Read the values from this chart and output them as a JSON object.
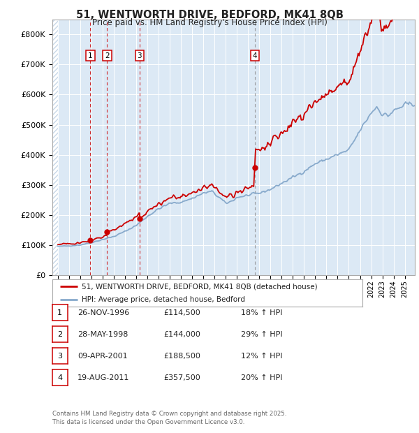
{
  "title_line1": "51, WENTWORTH DRIVE, BEDFORD, MK41 8QB",
  "title_line2": "Price paid vs. HM Land Registry's House Price Index (HPI)",
  "legend_label_red": "51, WENTWORTH DRIVE, BEDFORD, MK41 8QB (detached house)",
  "legend_label_blue": "HPI: Average price, detached house, Bedford",
  "footer": "Contains HM Land Registry data © Crown copyright and database right 2025.\nThis data is licensed under the Open Government Licence v3.0.",
  "transactions": [
    {
      "num": 1,
      "date": "26-NOV-1996",
      "price": 114500,
      "pct": "18%",
      "year": 1996.9,
      "vline_color": "#cc0000"
    },
    {
      "num": 2,
      "date": "28-MAY-1998",
      "price": 144000,
      "pct": "29%",
      "year": 1998.4,
      "vline_color": "#cc0000"
    },
    {
      "num": 3,
      "date": "09-APR-2001",
      "price": 188500,
      "pct": "12%",
      "year": 2001.3,
      "vline_color": "#cc0000"
    },
    {
      "num": 4,
      "date": "19-AUG-2011",
      "price": 357500,
      "pct": "20%",
      "year": 2011.6,
      "vline_color": "#888888"
    }
  ],
  "ylim": [
    0,
    850000
  ],
  "yticks": [
    0,
    100000,
    200000,
    300000,
    400000,
    500000,
    600000,
    700000,
    800000
  ],
  "ytick_labels": [
    "£0",
    "£100K",
    "£200K",
    "£300K",
    "£400K",
    "£500K",
    "£600K",
    "£700K",
    "£800K"
  ],
  "xlim_start": 1993.5,
  "xlim_end": 2025.9,
  "background_color": "#dce9f5",
  "grid_color": "#ffffff",
  "red_color": "#cc0000",
  "blue_color": "#88aacc",
  "hatch_color": "#c8d8e8",
  "marker_border": "#cc0000"
}
